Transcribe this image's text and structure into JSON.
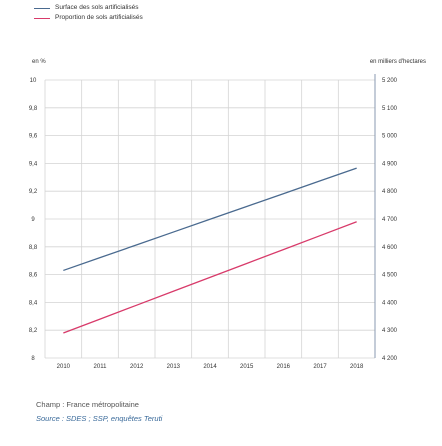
{
  "chart_data": {
    "type": "line",
    "x": [
      "2010",
      "2011",
      "2012",
      "2013",
      "2014",
      "2015",
      "2016",
      "2017",
      "2018"
    ],
    "series": [
      {
        "name": "Surface des sols artificialisés",
        "axis": "right",
        "color": "#4a6a8f",
        "values": [
          4515,
          4561,
          4607,
          4653,
          4699,
          4745,
          4791,
          4837,
          4883
        ]
      },
      {
        "name": "Proportion de sols artificialisés",
        "axis": "left",
        "color": "#d83a6a",
        "values": [
          8.18,
          8.28,
          8.38,
          8.48,
          8.58,
          8.68,
          8.78,
          8.88,
          8.98
        ]
      }
    ],
    "left_axis": {
      "unit": "en %",
      "ylim": [
        8.0,
        10.0
      ],
      "ticks": [
        8.0,
        8.2,
        8.4,
        8.6,
        8.8,
        9.0,
        9.2,
        9.4,
        9.6,
        9.8,
        10.0
      ],
      "tick_labels": [
        "8",
        "8,2",
        "8,4",
        "8,6",
        "8,8",
        "9",
        "9,2",
        "9,4",
        "9,6",
        "9,8",
        "10"
      ]
    },
    "right_axis": {
      "unit": "en milliers d'hectares",
      "ylim": [
        4200,
        5200
      ],
      "ticks": [
        4200,
        4300,
        4400,
        4500,
        4600,
        4700,
        4800,
        4900,
        5000,
        5100,
        5200
      ],
      "tick_labels": [
        "4 200",
        "4 300",
        "4 400",
        "4 500",
        "4 600",
        "4 700",
        "4 800",
        "4 900",
        "5 000",
        "5 100",
        "5 200"
      ]
    },
    "legend_position": "top-left",
    "grid": true
  },
  "footnotes": {
    "champ": "Champ : France métropolitaine",
    "source": "Source : SDES ; SSP, enquêtes Teruti"
  },
  "colors": {
    "grid": "#d4d4d4",
    "axis": "#8a9ab0"
  }
}
